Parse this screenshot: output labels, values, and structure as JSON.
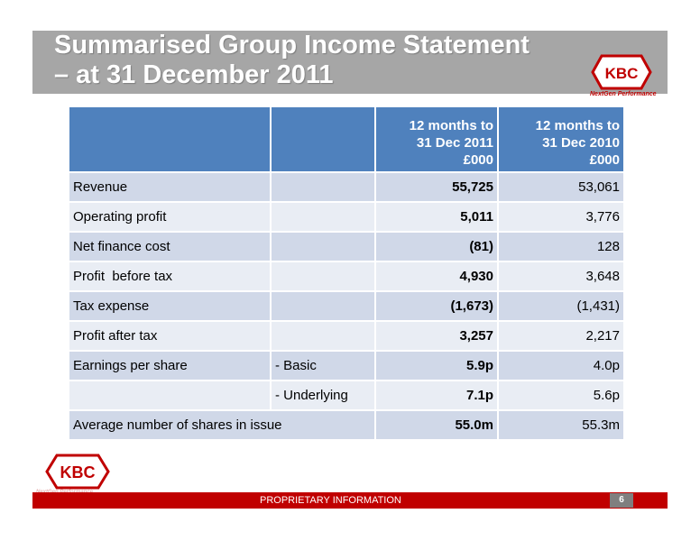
{
  "slide": {
    "title_line1": "Summarised Group Income Statement",
    "title_line2": "– at 31 December 2011",
    "logo_text": "KBC",
    "tagline": "NextGen Performance",
    "footer": "PROPRIETARY INFORMATION",
    "page_number": "6",
    "colors": {
      "title_band": "#a6a6a6",
      "header_blue": "#4f81bd",
      "row_dark": "#d0d8e8",
      "row_light": "#e9edf4",
      "brand_red": "#c00000"
    }
  },
  "table": {
    "header": {
      "col3": [
        "12 months to",
        "31 Dec 2011",
        "£000"
      ],
      "col4": [
        "12 months to",
        "31 Dec 2010",
        "£000"
      ]
    },
    "rows": [
      {
        "label": "Revenue",
        "sub": "",
        "y2011": "55,725",
        "y2010": "53,061"
      },
      {
        "label": "Operating profit",
        "sub": "",
        "y2011": "5,011",
        "y2010": "3,776"
      },
      {
        "label": "Net finance cost",
        "sub": "",
        "y2011": "(81)",
        "y2010": "128"
      },
      {
        "label": "Profit  before tax",
        "sub": "",
        "y2011": "4,930",
        "y2010": "3,648"
      },
      {
        "label": "Tax expense",
        "sub": "",
        "y2011": "(1,673)",
        "y2010": "(1,431)"
      },
      {
        "label": "Profit after tax",
        "sub": "",
        "y2011": "3,257",
        "y2010": "2,217"
      },
      {
        "label": "Earnings per share",
        "sub": "- Basic",
        "y2011": "5.9p",
        "y2010": "4.0p"
      },
      {
        "label": "",
        "sub": "- Underlying",
        "y2011": "7.1p",
        "y2010": "5.6p"
      },
      {
        "label": "Average number of shares in issue",
        "sub": "",
        "y2011": "55.0m",
        "y2010": "55.3m"
      }
    ]
  }
}
